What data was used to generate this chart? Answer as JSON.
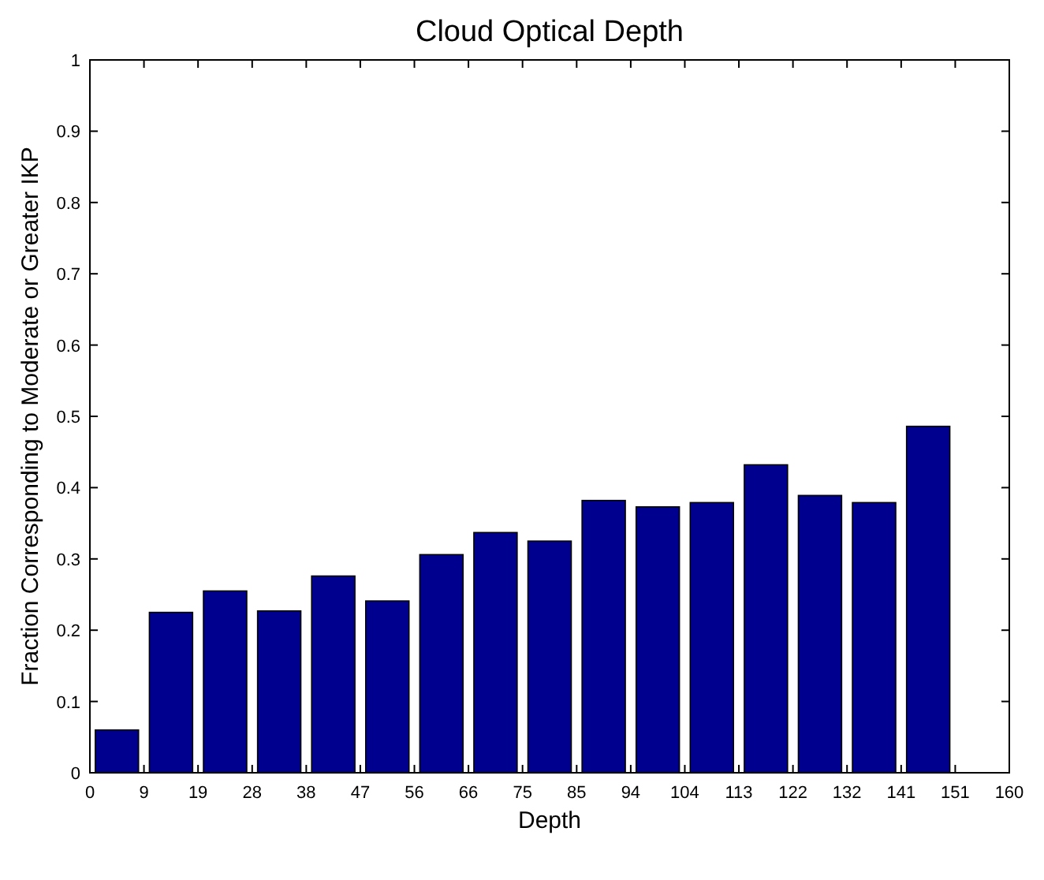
{
  "chart_data": {
    "type": "histogram",
    "title": "Cloud Optical Depth",
    "xlabel": "Depth",
    "ylabel": "Fraction Corresponding to Moderate or Greater IKP",
    "bins": [
      0,
      9.41,
      18.82,
      28.24,
      37.65,
      47.06,
      56.47,
      65.88,
      75.29,
      84.71,
      94.12,
      103.53,
      112.94,
      122.35,
      131.76,
      141.18,
      150.59,
      160
    ],
    "values": [
      0.06,
      0.225,
      0.255,
      0.227,
      0.276,
      0.241,
      0.306,
      0.337,
      0.325,
      0.382,
      0.373,
      0.379,
      0.432,
      0.389,
      0.379,
      0.486,
      0
    ],
    "color": "#00008f",
    "xlim": [
      0,
      160
    ],
    "xticks": [
      0,
      {
        "value": 9.41,
        "label": "9"
      },
      {
        "value": 18.82,
        "label": "19"
      },
      {
        "value": 28.24,
        "label": "28"
      },
      {
        "value": 37.65,
        "label": "38"
      },
      {
        "value": 47.06,
        "label": "47"
      },
      {
        "value": 56.47,
        "label": "56"
      },
      {
        "value": 65.88,
        "label": "66"
      },
      {
        "value": 75.29,
        "label": "75"
      },
      {
        "value": 84.71,
        "label": "85"
      },
      {
        "value": 94.12,
        "label": "94"
      },
      {
        "value": 103.53,
        "label": "104"
      },
      {
        "value": 112.94,
        "label": "113"
      },
      {
        "value": 122.35,
        "label": "122"
      },
      {
        "value": 131.76,
        "label": "132"
      },
      {
        "value": 141.18,
        "label": "141"
      },
      {
        "value": 150.59,
        "label": "151"
      },
      160
    ],
    "ylim": [
      0,
      1
    ],
    "yticks": [
      0,
      0.1,
      0.2,
      0.3,
      0.4,
      0.5,
      0.6,
      0.7,
      0.8,
      0.9,
      1
    ],
    "grid": false
  }
}
